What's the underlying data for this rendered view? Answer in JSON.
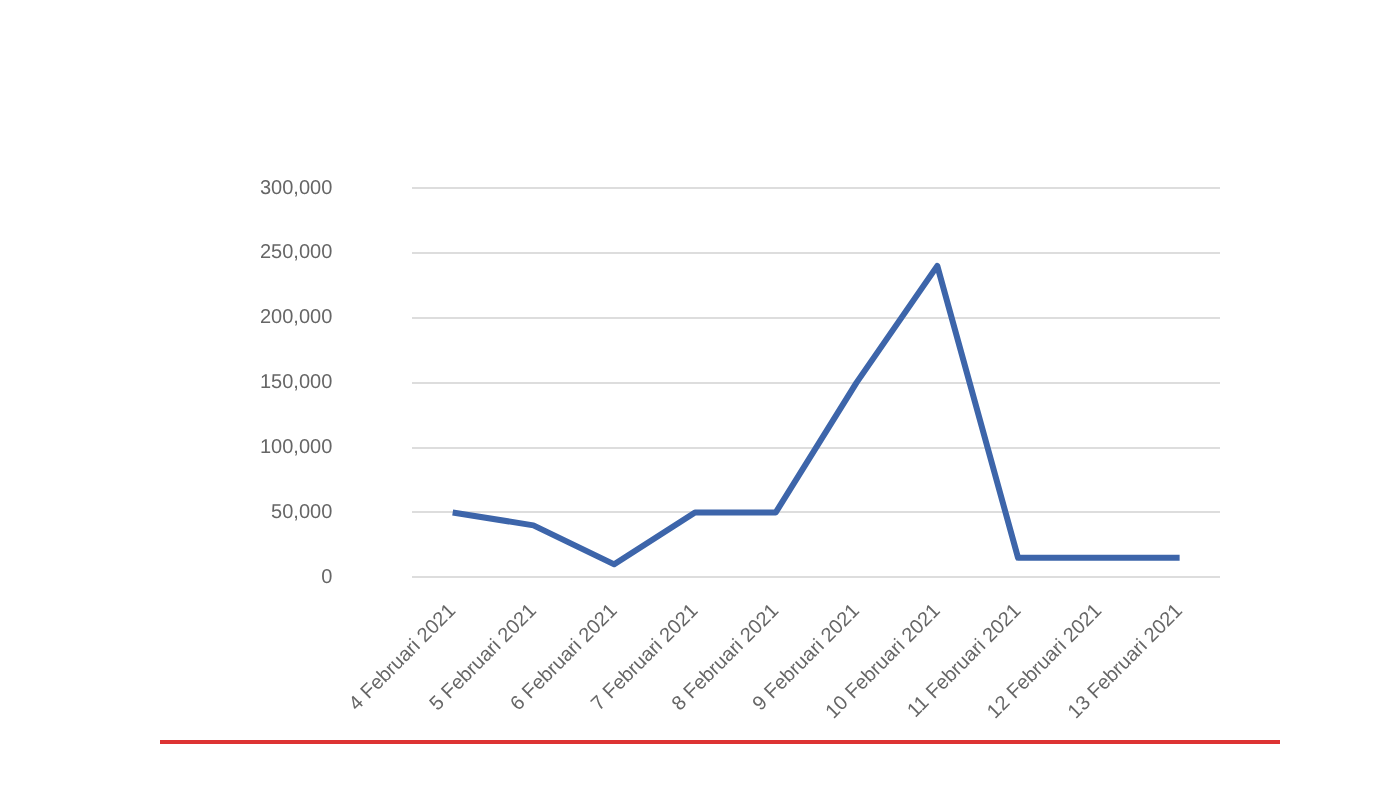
{
  "chart_data": {
    "type": "line",
    "categories": [
      "4 Februari 2021",
      "5 Februari 2021",
      "6 Februari 2021",
      "7 Februari 2021",
      "8 Februari 2021",
      "9 Februari 2021",
      "10 Februari 2021",
      "11 Februari 2021",
      "12 Februari 2021",
      "13 Februari 2021"
    ],
    "series": [
      {
        "color": "#3d65aa",
        "values": [
          50000,
          40000,
          10000,
          50000,
          50000,
          150000,
          240000,
          15000,
          15000,
          15000
        ]
      }
    ],
    "ylim": [
      0,
      300000
    ],
    "yticks": [
      {
        "value": 0,
        "label": "0"
      },
      {
        "value": 50000,
        "label": "50,000"
      },
      {
        "value": 100000,
        "label": "100,000"
      },
      {
        "value": 150000,
        "label": "150,000"
      },
      {
        "value": 200000,
        "label": "200,000"
      },
      {
        "value": 250000,
        "label": "250,000"
      },
      {
        "value": 300000,
        "label": "300,000"
      }
    ],
    "grid": "y",
    "legend": false,
    "marker": "none",
    "line_style": "solid"
  }
}
